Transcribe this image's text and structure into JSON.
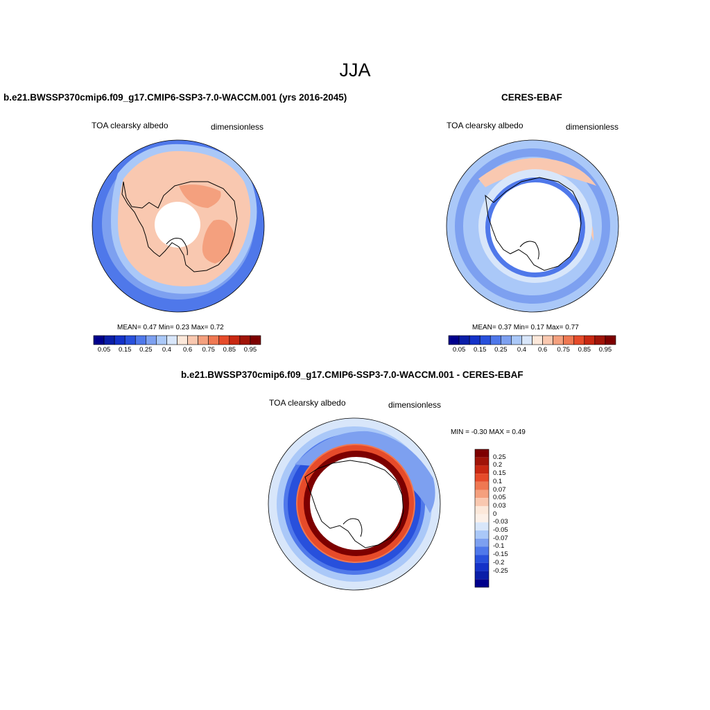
{
  "figure": {
    "title": "JJA"
  },
  "panels": [
    {
      "title": "b.e21.BWSSP370cmip6.f09_g17.CMIP6-SSP3-7.0-WACCM.001 (yrs 2016-2045)",
      "variable": "TOA clearsky albedo",
      "units": "dimensionless",
      "stats": "MEAN=   0.47  Min=   0.23  Max=   0.72"
    },
    {
      "title": "CERES-EBAF",
      "variable": "TOA clearsky albedo",
      "units": "dimensionless",
      "stats": "MEAN=   0.37  Min=   0.17  Max=   0.77"
    },
    {
      "title": "b.e21.BWSSP370cmip6.f09_g17.CMIP6-SSP3-7.0-WACCM.001 - CERES-EBAF",
      "variable": "TOA clearsky albedo",
      "units": "dimensionless",
      "stats": "MIN =  -0.30 MAX =   0.49"
    }
  ],
  "colorbars": {
    "absolute": {
      "colors": [
        "#00008c",
        "#0a1ea8",
        "#1432c8",
        "#2850dc",
        "#4f78ea",
        "#7da0f0",
        "#aac8f8",
        "#d8e6fa",
        "#fce8da",
        "#f9c8b0",
        "#f4a07e",
        "#ef7852",
        "#e64b2a",
        "#c82812",
        "#a01408",
        "#7d0000"
      ],
      "labels": [
        "0.05",
        "0.15",
        "0.25",
        "0.4",
        "0.6",
        "0.75",
        "0.85",
        "0.95"
      ]
    },
    "difference": {
      "colors": [
        "#00008c",
        "#0a1ea8",
        "#1432c8",
        "#2850dc",
        "#4f78ea",
        "#7da0f0",
        "#aac8f8",
        "#d8e6fa",
        "#fcf0e8",
        "#fce8da",
        "#f9c8b0",
        "#f4a07e",
        "#ef7852",
        "#e64b2a",
        "#c82812",
        "#a01408",
        "#7d0000"
      ],
      "labels": [
        "0.25",
        "0.2",
        "0.15",
        "0.1",
        "0.07",
        "0.05",
        "0.03",
        "0",
        "-0.03",
        "-0.05",
        "-0.07",
        "-0.1",
        "-0.15",
        "-0.2",
        "-0.25"
      ]
    }
  }
}
